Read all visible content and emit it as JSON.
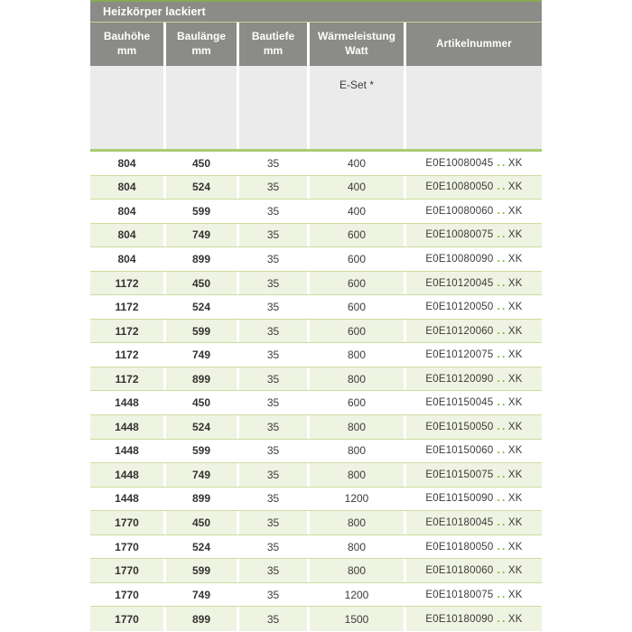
{
  "table": {
    "title": "Heizkörper lackiert",
    "columns": [
      {
        "line1": "Bauhöhe",
        "line2": "mm"
      },
      {
        "line1": "Baulänge",
        "line2": "mm"
      },
      {
        "line1": "Bautiefe",
        "line2": "mm"
      },
      {
        "line1": "Wärmeleistung",
        "line2": "Watt"
      },
      {
        "line1": "Artikelnummer",
        "line2": ""
      }
    ],
    "subheader": {
      "eset_label": "E-Set *"
    },
    "rows": [
      {
        "bauhoehe": "804",
        "baulaenge": "450",
        "bautiefe": "35",
        "watt": "400",
        "artikel": {
          "code": "E0E10080045",
          "dots": "..",
          "suffix": "XK"
        }
      },
      {
        "bauhoehe": "804",
        "baulaenge": "524",
        "bautiefe": "35",
        "watt": "400",
        "artikel": {
          "code": "E0E10080050",
          "dots": "..",
          "suffix": "XK"
        }
      },
      {
        "bauhoehe": "804",
        "baulaenge": "599",
        "bautiefe": "35",
        "watt": "400",
        "artikel": {
          "code": "E0E10080060",
          "dots": "..",
          "suffix": "XK"
        }
      },
      {
        "bauhoehe": "804",
        "baulaenge": "749",
        "bautiefe": "35",
        "watt": "600",
        "artikel": {
          "code": "E0E10080075",
          "dots": "..",
          "suffix": "XK"
        }
      },
      {
        "bauhoehe": "804",
        "baulaenge": "899",
        "bautiefe": "35",
        "watt": "600",
        "artikel": {
          "code": "E0E10080090",
          "dots": "..",
          "suffix": "XK"
        }
      },
      {
        "bauhoehe": "1172",
        "baulaenge": "450",
        "bautiefe": "35",
        "watt": "600",
        "artikel": {
          "code": "E0E10120045",
          "dots": "..",
          "suffix": "XK"
        }
      },
      {
        "bauhoehe": "1172",
        "baulaenge": "524",
        "bautiefe": "35",
        "watt": "600",
        "artikel": {
          "code": "E0E10120050",
          "dots": "..",
          "suffix": "XK"
        }
      },
      {
        "bauhoehe": "1172",
        "baulaenge": "599",
        "bautiefe": "35",
        "watt": "600",
        "artikel": {
          "code": "E0E10120060",
          "dots": "..",
          "suffix": "XK"
        }
      },
      {
        "bauhoehe": "1172",
        "baulaenge": "749",
        "bautiefe": "35",
        "watt": "800",
        "artikel": {
          "code": "E0E10120075",
          "dots": "..",
          "suffix": "XK"
        }
      },
      {
        "bauhoehe": "1172",
        "baulaenge": "899",
        "bautiefe": "35",
        "watt": "800",
        "artikel": {
          "code": "E0E10120090",
          "dots": "..",
          "suffix": "XK"
        }
      },
      {
        "bauhoehe": "1448",
        "baulaenge": "450",
        "bautiefe": "35",
        "watt": "600",
        "artikel": {
          "code": "E0E10150045",
          "dots": "..",
          "suffix": "XK"
        }
      },
      {
        "bauhoehe": "1448",
        "baulaenge": "524",
        "bautiefe": "35",
        "watt": "800",
        "artikel": {
          "code": "E0E10150050",
          "dots": "..",
          "suffix": "XK"
        }
      },
      {
        "bauhoehe": "1448",
        "baulaenge": "599",
        "bautiefe": "35",
        "watt": "800",
        "artikel": {
          "code": "E0E10150060",
          "dots": "..",
          "suffix": "XK"
        }
      },
      {
        "bauhoehe": "1448",
        "baulaenge": "749",
        "bautiefe": "35",
        "watt": "800",
        "artikel": {
          "code": "E0E10150075",
          "dots": "..",
          "suffix": "XK"
        }
      },
      {
        "bauhoehe": "1448",
        "baulaenge": "899",
        "bautiefe": "35",
        "watt": "1200",
        "artikel": {
          "code": "E0E10150090",
          "dots": "..",
          "suffix": "XK"
        }
      },
      {
        "bauhoehe": "1770",
        "baulaenge": "450",
        "bautiefe": "35",
        "watt": "800",
        "artikel": {
          "code": "E0E10180045",
          "dots": "..",
          "suffix": "XK"
        }
      },
      {
        "bauhoehe": "1770",
        "baulaenge": "524",
        "bautiefe": "35",
        "watt": "800",
        "artikel": {
          "code": "E0E10180050",
          "dots": "..",
          "suffix": "XK"
        }
      },
      {
        "bauhoehe": "1770",
        "baulaenge": "599",
        "bautiefe": "35",
        "watt": "800",
        "artikel": {
          "code": "E0E10180060",
          "dots": "..",
          "suffix": "XK"
        }
      },
      {
        "bauhoehe": "1770",
        "baulaenge": "749",
        "bautiefe": "35",
        "watt": "1200",
        "artikel": {
          "code": "E0E10180075",
          "dots": "..",
          "suffix": "XK"
        }
      },
      {
        "bauhoehe": "1770",
        "baulaenge": "899",
        "bautiefe": "35",
        "watt": "1500",
        "artikel": {
          "code": "E0E10180090",
          "dots": "..",
          "suffix": "XK"
        }
      }
    ],
    "colors": {
      "header_gray": "#8b8b88",
      "subheader_gray": "#ebebeb",
      "alt_row_green": "#eff3e2",
      "row_separator_green": "#cbdd9e",
      "divider_green": "#a9cb72",
      "top_accent_green": "#88a954",
      "dots_green": "#76b82a",
      "text_dark": "#3b3b3a",
      "header_text": "#ffffff"
    }
  }
}
